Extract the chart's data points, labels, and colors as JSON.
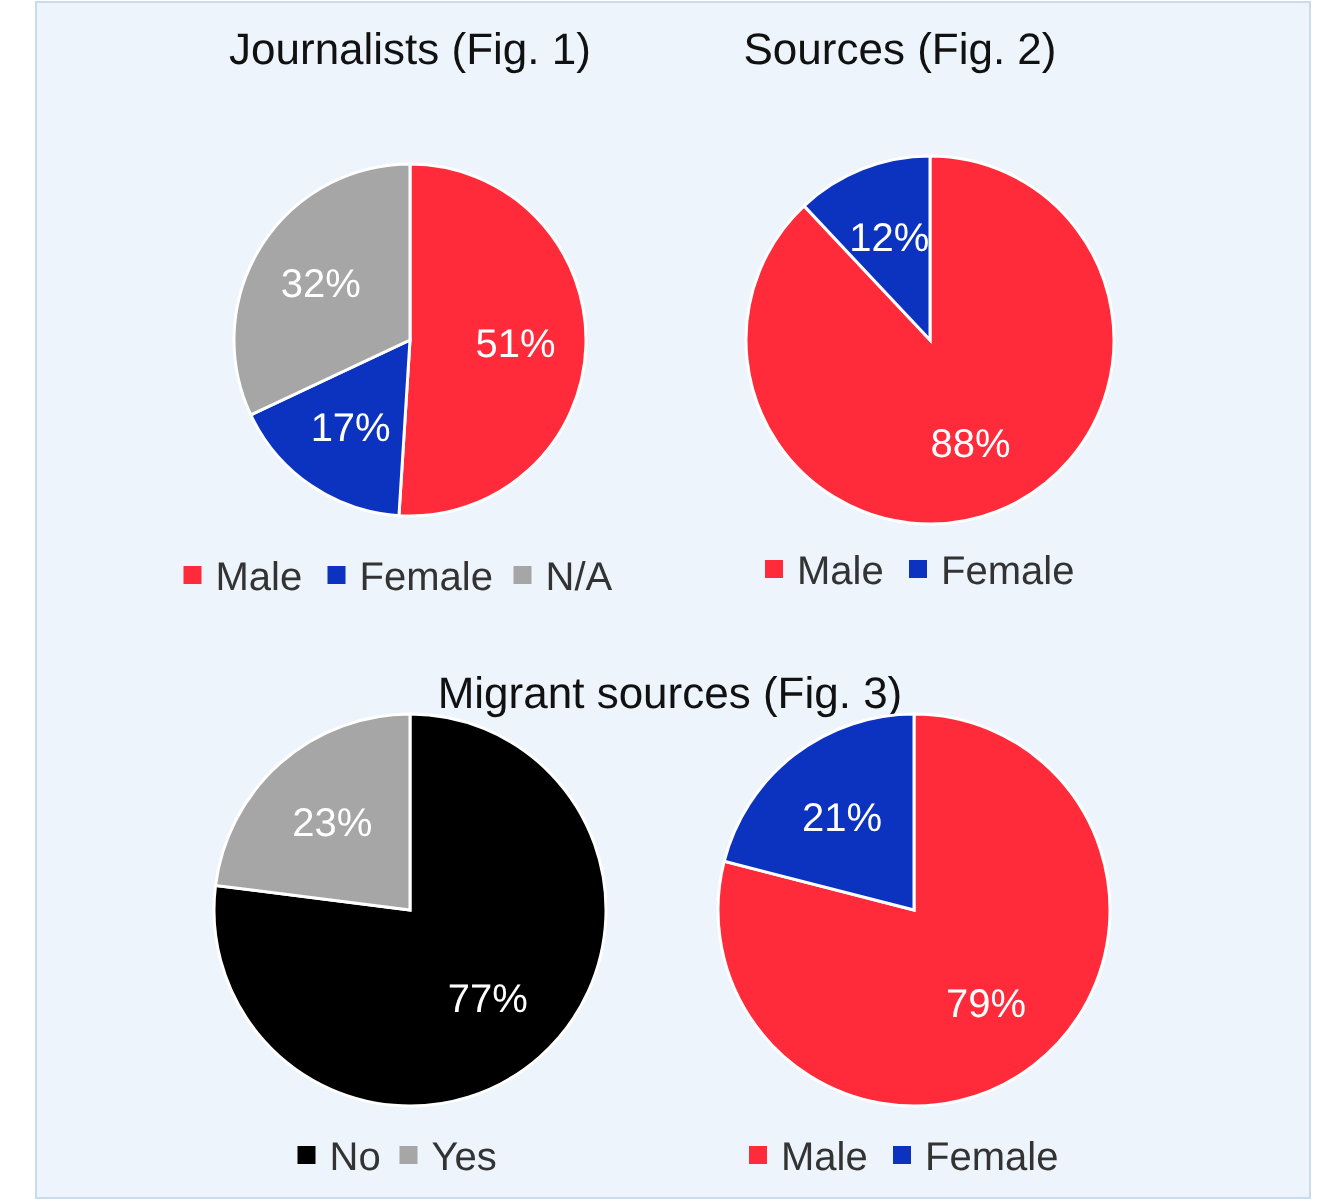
{
  "chart_data": [
    {
      "type": "pie",
      "title": "Journalists (Fig. 1)",
      "categories": [
        "Male",
        "Female",
        "N/A"
      ],
      "values": [
        51,
        17,
        32
      ],
      "value_labels": [
        "51%",
        "17%",
        "32%"
      ],
      "colors": [
        "#ff2a3a",
        "#0b33bf",
        "#a6a6a6"
      ],
      "legend": "bottom"
    },
    {
      "type": "pie",
      "title": "Sources (Fig. 2)",
      "categories": [
        "Male",
        "Female"
      ],
      "values": [
        88,
        12
      ],
      "value_labels": [
        "88%",
        "12%"
      ],
      "colors": [
        "#ff2a3a",
        "#0b33bf"
      ],
      "legend": "bottom"
    },
    {
      "type": "pie",
      "title": "Migrant sources (Fig. 3)",
      "categories": [
        "No",
        "Yes"
      ],
      "values": [
        77,
        23
      ],
      "value_labels": [
        "77%",
        "23%"
      ],
      "colors": [
        "#000000",
        "#a6a6a6"
      ],
      "legend": "bottom"
    },
    {
      "type": "pie",
      "categories": [
        "Male",
        "Female"
      ],
      "values": [
        79,
        21
      ],
      "value_labels": [
        "79%",
        "21%"
      ],
      "colors": [
        "#ff2a3a",
        "#0b33bf"
      ],
      "legend": "bottom"
    }
  ]
}
